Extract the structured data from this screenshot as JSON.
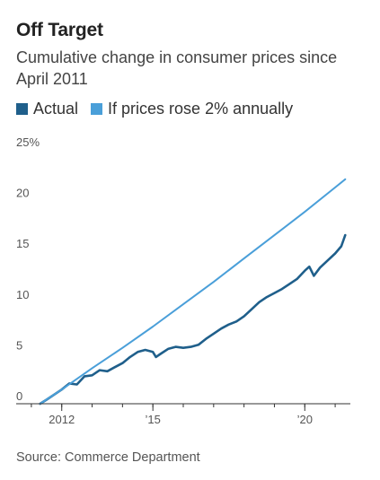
{
  "chart_data": {
    "type": "line",
    "title": "Off Target",
    "subtitle": "Cumulative change in consumer prices since April 2011",
    "xlabel": "",
    "ylabel": "",
    "ylim": [
      0,
      25
    ],
    "y_ticks": [
      0,
      5,
      10,
      15,
      20,
      25
    ],
    "y_tick_labels": [
      "0",
      "5",
      "10",
      "15",
      "20",
      "25%"
    ],
    "x_ticks": [
      2012,
      2015,
      2020
    ],
    "x_tick_labels": [
      "2012",
      "’15",
      "’20"
    ],
    "xlim": [
      2010.5,
      2021.5
    ],
    "grid": false,
    "legend_placement": "top-left",
    "series": [
      {
        "name": "Actual",
        "color": "#1f5f8b",
        "points": [
          [
            2011.29,
            0.0
          ],
          [
            2011.5,
            0.4
          ],
          [
            2011.75,
            0.9
          ],
          [
            2012.0,
            1.4
          ],
          [
            2012.25,
            2.0
          ],
          [
            2012.5,
            1.9
          ],
          [
            2012.75,
            2.7
          ],
          [
            2013.0,
            2.8
          ],
          [
            2013.25,
            3.3
          ],
          [
            2013.5,
            3.2
          ],
          [
            2013.75,
            3.6
          ],
          [
            2014.0,
            4.0
          ],
          [
            2014.25,
            4.6
          ],
          [
            2014.5,
            5.1
          ],
          [
            2014.75,
            5.3
          ],
          [
            2015.0,
            5.1
          ],
          [
            2015.1,
            4.6
          ],
          [
            2015.25,
            4.9
          ],
          [
            2015.5,
            5.4
          ],
          [
            2015.75,
            5.6
          ],
          [
            2016.0,
            5.5
          ],
          [
            2016.25,
            5.6
          ],
          [
            2016.5,
            5.8
          ],
          [
            2016.75,
            6.4
          ],
          [
            2017.0,
            6.9
          ],
          [
            2017.25,
            7.4
          ],
          [
            2017.5,
            7.8
          ],
          [
            2017.75,
            8.1
          ],
          [
            2018.0,
            8.6
          ],
          [
            2018.25,
            9.3
          ],
          [
            2018.5,
            10.0
          ],
          [
            2018.75,
            10.5
          ],
          [
            2019.0,
            10.9
          ],
          [
            2019.25,
            11.3
          ],
          [
            2019.5,
            11.8
          ],
          [
            2019.75,
            12.3
          ],
          [
            2020.0,
            13.1
          ],
          [
            2020.15,
            13.5
          ],
          [
            2020.3,
            12.6
          ],
          [
            2020.5,
            13.4
          ],
          [
            2020.75,
            14.1
          ],
          [
            2021.0,
            14.8
          ],
          [
            2021.2,
            15.5
          ],
          [
            2021.33,
            16.6
          ]
        ]
      },
      {
        "name": "If prices rose 2% annually",
        "color": "#4a9fd9",
        "points": [
          [
            2011.29,
            0.0
          ],
          [
            2012.0,
            1.4
          ],
          [
            2013.0,
            3.5
          ],
          [
            2014.0,
            5.5
          ],
          [
            2015.0,
            7.6
          ],
          [
            2016.0,
            9.8
          ],
          [
            2017.0,
            12.0
          ],
          [
            2018.0,
            14.3
          ],
          [
            2019.0,
            16.6
          ],
          [
            2020.0,
            18.9
          ],
          [
            2021.0,
            21.3
          ],
          [
            2021.33,
            22.1
          ]
        ]
      }
    ]
  },
  "source": "Source: Commerce Department"
}
